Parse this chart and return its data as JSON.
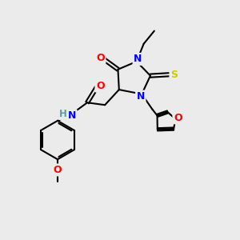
{
  "bg_color": "#ebebeb",
  "bond_color": "#000000",
  "atom_colors": {
    "N": "#0000ff",
    "O": "#ff0000",
    "S": "#cccc00",
    "H": "#5f9ea0",
    "C": "#000000"
  },
  "bond_width": 1.5,
  "figsize": [
    3.0,
    3.0
  ],
  "dpi": 100
}
